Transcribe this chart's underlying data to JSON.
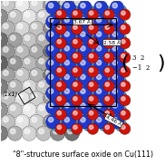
{
  "title": "\"8\"-structure surface oxide on Cu(111)",
  "title_fontsize": 5.8,
  "bg_color": "#ffffff",
  "label_367": "3.67 Å",
  "label_258": "2.58 Å",
  "label_446": "4.46 Å",
  "label_1x1": "(1x1)",
  "colors": {
    "Cu_grey_light": "#e0e0e0",
    "Cu_grey_mid": "#b0b0b0",
    "Cu_grey_dark": "#707070",
    "Cu_blue_dark": "#1a35cc",
    "Cu_blue_mid": "#3355dd",
    "Cu_cyan": "#4499cc",
    "O_red": "#cc1100",
    "O_red_dark": "#991100"
  },
  "annot_color": "black",
  "box_color": "black",
  "box_fill": "white"
}
